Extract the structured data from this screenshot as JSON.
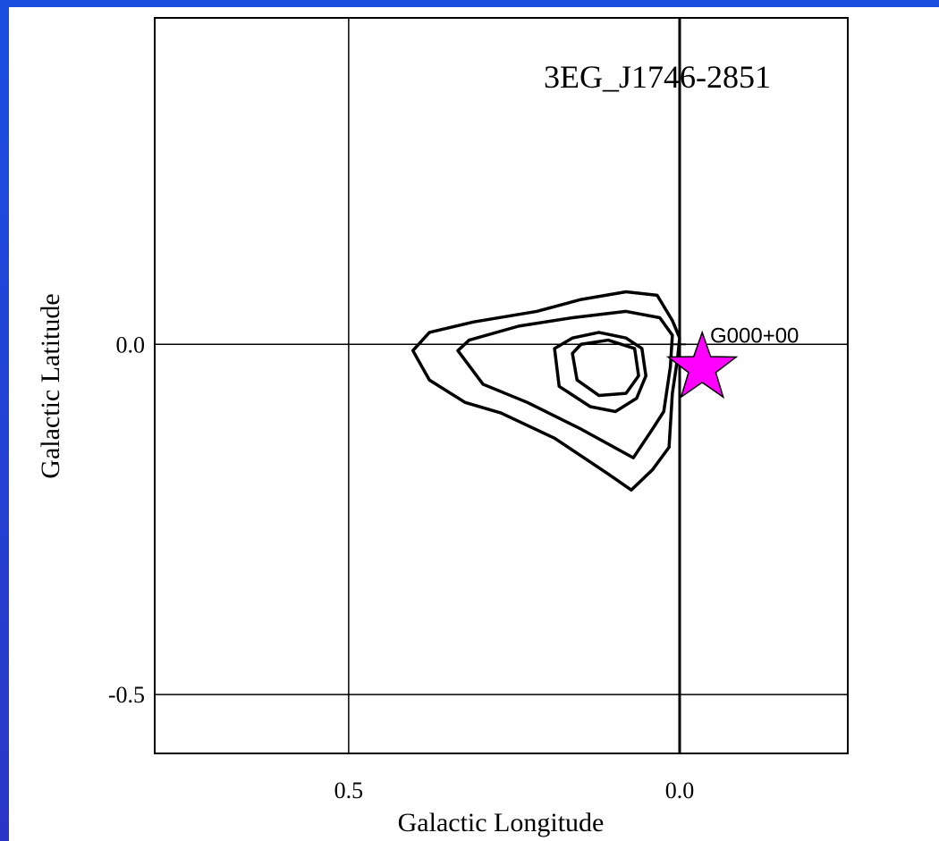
{
  "chart_data": {
    "type": "contour",
    "title": "3EG_J1746-2851",
    "xlabel": "Galactic Longitude",
    "ylabel": "Galactic Latitude",
    "xlim": [
      0.793,
      -0.254
    ],
    "ylim": [
      -0.584,
      0.466
    ],
    "xticks": [
      0.5,
      {
        "value": 0,
        "label": "0.0"
      }
    ],
    "yticks": [
      {
        "value": 0,
        "label": "0.0"
      },
      -0.5
    ],
    "grid": true,
    "series": [
      {
        "color": "#000000",
        "x": [
          0.403,
          0.378,
          0.311,
          0.216,
          0.149,
          0.081,
          0.034,
          0.011,
          0,
          0.003,
          0.011,
          0.016,
          0.041,
          0.073,
          0.108,
          0.189,
          0.27,
          0.324,
          0.378
        ],
        "values": [
          -0.009,
          0.017,
          0.032,
          0.047,
          0.064,
          0.075,
          0.07,
          0.034,
          0.009,
          -0.019,
          -0.07,
          -0.147,
          -0.179,
          -0.208,
          -0.185,
          -0.134,
          -0.098,
          -0.083,
          -0.051
        ]
      },
      {
        "color": "#000000",
        "x": [
          0.335,
          0.318,
          0.243,
          0.162,
          0.081,
          0.03,
          0.011,
          0.014,
          0.024,
          0.041,
          0.07,
          0.149,
          0.23,
          0.297
        ],
        "values": [
          -0.009,
          0.006,
          0.026,
          0.038,
          0.047,
          0.038,
          0.013,
          -0.032,
          -0.096,
          -0.121,
          -0.162,
          -0.121,
          -0.083,
          -0.057
        ]
      },
      {
        "color": "#000000",
        "x": [
          0.189,
          0.162,
          0.122,
          0.081,
          0.057,
          0.051,
          0.065,
          0.097,
          0.135,
          0.182
        ],
        "values": [
          -0.006,
          0.009,
          0.017,
          0.009,
          -0.006,
          -0.045,
          -0.077,
          -0.096,
          -0.089,
          -0.06
        ]
      },
      {
        "color": "#000000",
        "x": [
          0.162,
          0.149,
          0.108,
          0.068,
          0.062,
          0.081,
          0.122,
          0.155
        ],
        "values": [
          -0.013,
          0,
          0.006,
          -0.006,
          -0.045,
          -0.07,
          -0.073,
          -0.051
        ]
      }
    ],
    "source": {
      "label": "G000+00",
      "x": 0,
      "y": 0
    },
    "star": {
      "x": -0.034,
      "y": -0.034,
      "color": "#ff00ff"
    }
  }
}
